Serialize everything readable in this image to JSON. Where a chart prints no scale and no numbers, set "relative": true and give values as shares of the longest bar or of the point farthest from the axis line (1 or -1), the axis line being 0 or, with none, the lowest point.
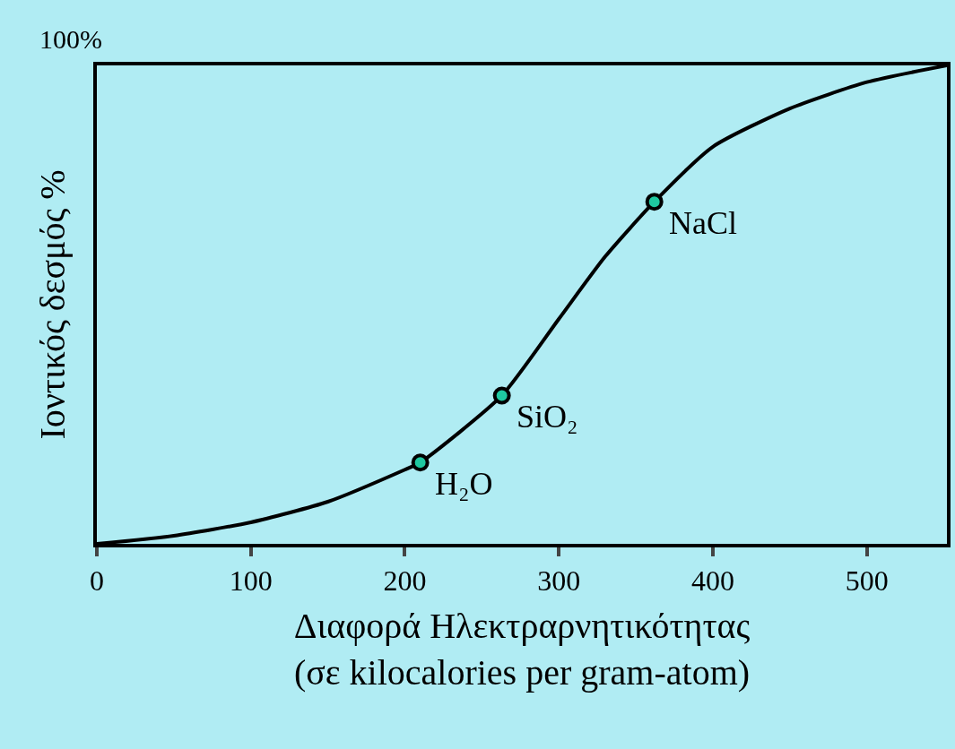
{
  "chart_data": {
    "type": "line",
    "relative": true,
    "xlabel": "Διαφορά Ηλεκτραρνητικότητας\n(σε kilocalories per gram-atom)",
    "ylabel": "Ιοντικός δεσμός %",
    "xlim": [
      0,
      552
    ],
    "xticks": [
      0,
      100,
      200,
      300,
      400,
      500
    ],
    "grid": false,
    "series": [
      {
        "color": "#000000",
        "marker": "none",
        "x": [
          0,
          50,
          100,
          150,
          200,
          210,
          263,
          300,
          330,
          362,
          400,
          450,
          500,
          552
        ],
        "values": [
          0,
          0.017,
          0.045,
          0.088,
          0.155,
          0.17,
          0.31,
          0.47,
          0.6,
          0.715,
          0.83,
          0.91,
          0.965,
          1.0
        ]
      },
      {
        "type": "scatter",
        "color": "#1fc8a0",
        "marker": "circle",
        "x": [
          210,
          263,
          362
        ],
        "values": [
          0.17,
          0.31,
          0.715
        ]
      }
    ],
    "annotations": [
      "100%",
      {
        "text": "H₂O",
        "x": 210,
        "y": 0.17
      },
      {
        "text": "SiO₂",
        "x": 263,
        "y": 0.31
      },
      {
        "text": "NaCl",
        "x": 362,
        "y": 0.715
      }
    ]
  }
}
